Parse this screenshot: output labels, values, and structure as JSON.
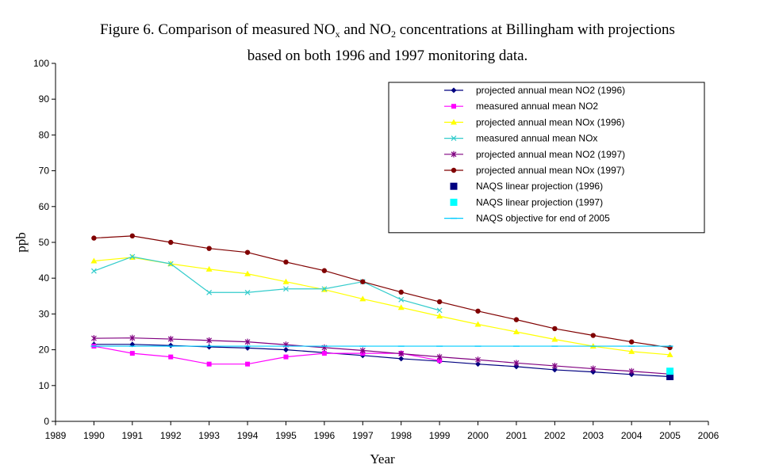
{
  "chart_data": {
    "type": "line",
    "title": {
      "line1_a": "Figure 6. Comparison of measured NO",
      "line1_sub1": "x",
      "line1_b": " and NO",
      "line1_sub2": "2",
      "line1_c": " concentrations at Billingham with projections",
      "line2": "based on both 1996 and 1997 monitoring data."
    },
    "xlabel": "Year",
    "ylabel": "ppb",
    "xlim": [
      1989,
      2006
    ],
    "ylim": [
      0,
      100
    ],
    "xticks": [
      1989,
      1990,
      1991,
      1992,
      1993,
      1994,
      1995,
      1996,
      1997,
      1998,
      1999,
      2000,
      2001,
      2002,
      2003,
      2004,
      2005,
      2006
    ],
    "yticks": [
      0,
      10,
      20,
      30,
      40,
      50,
      60,
      70,
      80,
      90,
      100
    ],
    "grid": false,
    "legend_position": "top-right",
    "series": [
      {
        "name": "projected annual mean NO2 (1996)",
        "color": "#000080",
        "marker": "diamond",
        "x": [
          1990,
          1991,
          1992,
          1993,
          1994,
          1995,
          1996,
          1997,
          1998,
          1999,
          2000,
          2001,
          2002,
          2003,
          2004,
          2005
        ],
        "y": [
          21.5,
          21.5,
          21.2,
          20.8,
          20.5,
          20.0,
          19.2,
          18.4,
          17.5,
          16.8,
          16.0,
          15.3,
          14.4,
          13.8,
          13.1,
          12.5
        ]
      },
      {
        "name": "measured annual mean NO2",
        "color": "#ff00ff",
        "marker": "square",
        "x": [
          1990,
          1991,
          1992,
          1993,
          1994,
          1995,
          1996,
          1997,
          1998,
          1999
        ],
        "y": [
          21,
          19,
          18,
          16,
          16,
          18,
          19,
          19,
          19,
          17
        ]
      },
      {
        "name": "projected annual mean NOx (1996)",
        "color": "#ffff00",
        "marker": "triangle",
        "x": [
          1990,
          1991,
          1992,
          1993,
          1994,
          1995,
          1996,
          1997,
          1998,
          1999,
          2000,
          2001,
          2002,
          2003,
          2004,
          2005
        ],
        "y": [
          44.8,
          45.8,
          44.0,
          42.5,
          41.2,
          39.0,
          36.8,
          34.2,
          31.8,
          29.4,
          27.1,
          25.0,
          22.9,
          21.0,
          19.5,
          18.6
        ]
      },
      {
        "name": "measured annual mean NOx",
        "color": "#33cccc",
        "marker": "x",
        "x": [
          1990,
          1991,
          1992,
          1993,
          1994,
          1995,
          1996,
          1997,
          1998,
          1999
        ],
        "y": [
          42,
          46,
          44,
          36,
          36,
          37,
          37,
          39,
          34,
          31
        ]
      },
      {
        "name": "projected annual mean NO2 (1997)",
        "color": "#800080",
        "marker": "star",
        "x": [
          1990,
          1991,
          1992,
          1993,
          1994,
          1995,
          1996,
          1997,
          1998,
          1999,
          2000,
          2001,
          2002,
          2003,
          2004,
          2005
        ],
        "y": [
          23.2,
          23.3,
          23.0,
          22.6,
          22.2,
          21.4,
          20.6,
          19.8,
          18.9,
          18.0,
          17.2,
          16.3,
          15.5,
          14.7,
          14.0,
          13.2
        ]
      },
      {
        "name": "projected annual mean NOx (1997)",
        "color": "#800000",
        "marker": "circle",
        "x": [
          1990,
          1991,
          1992,
          1993,
          1994,
          1995,
          1996,
          1997,
          1998,
          1999,
          2000,
          2001,
          2002,
          2003,
          2004,
          2005
        ],
        "y": [
          51.2,
          51.8,
          50.0,
          48.3,
          47.2,
          44.5,
          42.1,
          39.0,
          36.1,
          33.4,
          30.8,
          28.4,
          25.9,
          24.0,
          22.2,
          20.6
        ]
      },
      {
        "name": "NAQS linear projection (1996)",
        "color": "#000080",
        "marker": "bigsquare",
        "x": [
          2005
        ],
        "y": [
          12.5
        ]
      },
      {
        "name": "NAQS linear projection (1997)",
        "color": "#00ffff",
        "marker": "bigsquare",
        "x": [
          2005
        ],
        "y": [
          14
        ]
      },
      {
        "name": "NAQS objective for end of 2005",
        "color": "#00ccff",
        "marker": "dash",
        "x": [
          1990,
          1991,
          1992,
          1993,
          1994,
          1995,
          1996,
          1997,
          1998,
          1999,
          2000,
          2001,
          2002,
          2003,
          2004,
          2005
        ],
        "y": [
          21,
          21,
          21,
          21,
          21,
          21,
          21,
          21,
          21,
          21,
          21,
          21,
          21,
          21,
          21,
          21
        ]
      }
    ]
  }
}
